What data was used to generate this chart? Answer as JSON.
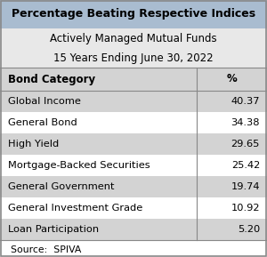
{
  "title": "Percentage Beating Respective Indices",
  "subtitle1": "Actively Managed Mutual Funds",
  "subtitle2": "15 Years Ending June 30, 2022",
  "col1_header": "Bond Category",
  "col2_header": "%",
  "rows": [
    [
      "Global Income",
      "40.37"
    ],
    [
      "General Bond",
      "34.38"
    ],
    [
      "High Yield",
      "29.65"
    ],
    [
      "Mortgage-Backed Securities",
      "25.42"
    ],
    [
      "General Government",
      "19.74"
    ],
    [
      "General Investment Grade",
      "10.92"
    ],
    [
      "Loan Participation",
      "5.20"
    ]
  ],
  "source": "Source:  SPIVA",
  "shaded_rows": [
    0,
    2,
    4,
    6
  ],
  "row_bg_shaded": "#d3d3d3",
  "row_bg_white": "#ffffff",
  "header_bg": "#d3d3d3",
  "title_bg": "#a9bcd0",
  "subtitle_bg": "#e8e8e8",
  "source_bg": "#ffffff",
  "border_color": "#888888",
  "title_fontsize": 9.0,
  "subtitle_fontsize": 8.5,
  "header_fontsize": 8.5,
  "cell_fontsize": 8.2,
  "source_fontsize": 7.8,
  "col_split": 0.735
}
